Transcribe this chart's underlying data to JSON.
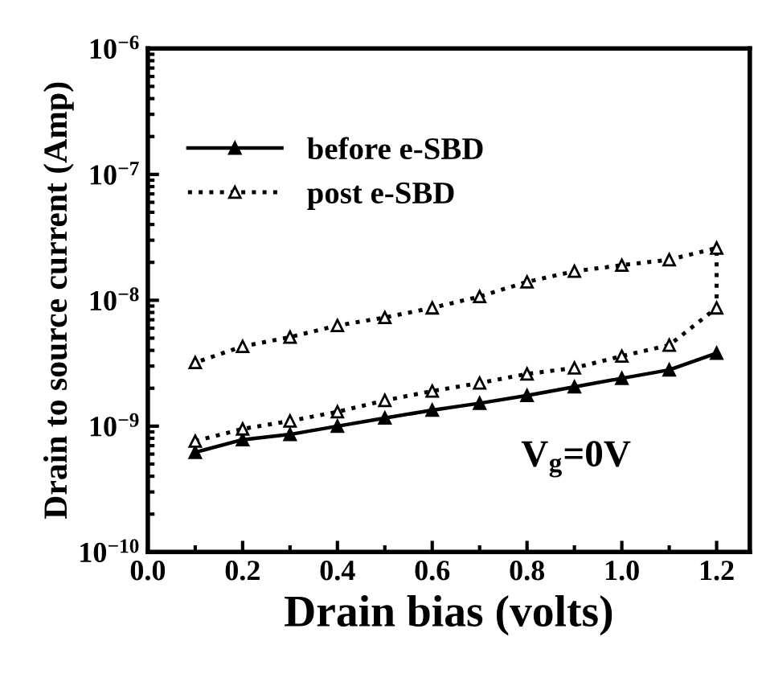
{
  "chart_data": {
    "type": "line",
    "xlabel": "Drain bias (volts)",
    "ylabel": "Drain to source current (Amp)",
    "log": "y",
    "xlim": [
      0,
      1.27
    ],
    "ylim": [
      1e-10,
      1e-06
    ],
    "xticks": [
      {
        "value": 0,
        "label": "0.0"
      },
      {
        "value": 0.2,
        "label": "0.2"
      },
      {
        "value": 0.4,
        "label": "0.4"
      },
      {
        "value": 0.6,
        "label": "0.6"
      },
      {
        "value": 0.8,
        "label": "0.8"
      },
      {
        "value": 1.0,
        "label": "1.0"
      },
      {
        "value": 1.2,
        "label": "1.2"
      }
    ],
    "yticks": [
      {
        "value": 1e-10,
        "label": "10$^{−10}$"
      },
      {
        "value": 1e-09,
        "label": "10$^{−9}$"
      },
      {
        "value": 1e-08,
        "label": "10$^{−8}$"
      },
      {
        "value": 1e-07,
        "label": "10$^{−7}$"
      },
      {
        "value": 1e-06,
        "label": "10$^{−6}$"
      }
    ],
    "grid": false,
    "legend": "top left",
    "annotations": [
      "V$_{g}$=0V"
    ],
    "series": [
      {
        "name": "before e-SBD",
        "color": "#000000",
        "marker": "triangle",
        "line_style": "solid",
        "x": [
          0.1,
          0.2,
          0.3,
          0.4,
          0.5,
          0.6,
          0.7,
          0.8,
          0.9,
          1.0,
          1.1,
          1.2
        ],
        "values": [
          6.2e-10,
          7.8e-10,
          8.6e-10,
          1e-09,
          1.16e-09,
          1.34e-09,
          1.52e-09,
          1.75e-09,
          2.05e-09,
          2.4e-09,
          2.8e-09,
          3.8e-09
        ]
      },
      {
        "name": "post e-SBD",
        "color": "#000000",
        "marker": "triangle",
        "line_style": "dotted",
        "x": [
          0.1,
          0.2,
          0.3,
          0.4,
          0.5,
          0.6,
          0.7,
          0.8,
          0.9,
          1.0,
          1.1,
          1.2,
          1.2,
          1.1,
          1.0,
          0.9,
          0.8,
          0.7,
          0.6,
          0.5,
          0.4,
          0.3,
          0.2,
          0.1
        ],
        "values": [
          7.6e-10,
          9.5e-10,
          1.1e-09,
          1.3e-09,
          1.6e-09,
          1.9e-09,
          2.2e-09,
          2.6e-09,
          2.9e-09,
          3.6e-09,
          4.4e-09,
          8.7e-09,
          2.6e-08,
          2.1e-08,
          1.9e-08,
          1.7e-08,
          1.4e-08,
          1.07e-08,
          8.7e-09,
          7.3e-09,
          6.3e-09,
          5.1e-09,
          4.3e-09,
          3.2e-09
        ]
      }
    ]
  }
}
